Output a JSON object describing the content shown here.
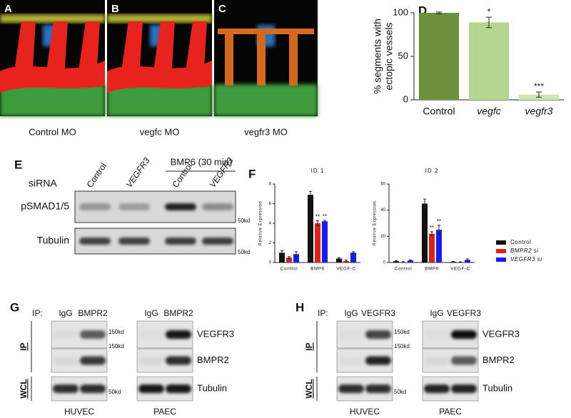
{
  "images": [
    {
      "letter": "A",
      "caption": "Control MO"
    },
    {
      "letter": "B",
      "caption": "vegfc MO"
    },
    {
      "letter": "C",
      "caption": "vegfr3 MO"
    }
  ],
  "blot_e": {
    "letter": "E",
    "row_label": "siRNA",
    "treatment": "BMP6 (30 min)",
    "lanes": [
      "Control",
      "VEGFR3",
      "Control",
      "VEGFR3"
    ],
    "rows": [
      {
        "label": "pSMAD1/5",
        "marker": "50kd"
      },
      {
        "label": "Tubulin",
        "marker": "50kd"
      }
    ]
  },
  "coip": [
    {
      "letter": "G",
      "ip_prefix": "IP:",
      "lanes_left": [
        "IgG",
        "BMPR2"
      ],
      "lanes_right": [
        "IgG",
        "BMPR2"
      ],
      "group_labels": [
        "IP",
        "WCL"
      ],
      "rows": [
        {
          "label": "VEGFR3",
          "marker": "150kd"
        },
        {
          "label": "BMPR2",
          "marker": "150kd"
        },
        {
          "label": "Tubulin",
          "marker": "50kd"
        }
      ],
      "cells": [
        "HUVEC",
        "PAEC"
      ]
    },
    {
      "letter": "H",
      "ip_prefix": "IP:",
      "lanes_left": [
        "IgG",
        "VEGFR3"
      ],
      "lanes_right": [
        "IgG",
        "VEGFR3"
      ],
      "group_labels": [
        "IP",
        "WCL"
      ],
      "rows": [
        {
          "label": "VEGFR3",
          "marker": "150kd"
        },
        {
          "label": "BMPR2",
          "marker": "150kd"
        },
        {
          "label": "Tubulin",
          "marker": "50kd"
        }
      ],
      "cells": [
        "HUVEC",
        "PAEC"
      ]
    }
  ],
  "chart_data": [
    {
      "type": "bar",
      "letter": "D",
      "categories": [
        "Control",
        "vegfc",
        "vegfr3"
      ],
      "values": [
        100,
        89,
        6
      ],
      "errors": [
        1,
        6,
        3
      ],
      "colors": [
        "#6e8f3c",
        "#b5d68e",
        "#cfe6b2"
      ],
      "ylabel": [
        "% segments with",
        "ectopic vessels"
      ],
      "ylim": [
        0,
        100
      ],
      "yticks": [
        0,
        50,
        100
      ],
      "annotations": [
        {
          "category": "vegfc",
          "text": "*"
        },
        {
          "category": "vegfr3",
          "text": "***"
        }
      ]
    },
    {
      "type": "grouped_bar",
      "letter": "F",
      "categories": [
        "Control",
        "BMP6",
        "VEGF-C"
      ],
      "ylabel": "Relative Expression",
      "series": [
        {
          "name": "Control",
          "color": "#111111"
        },
        {
          "name": "BMPR2 si",
          "color": "#e0201b"
        },
        {
          "name": "VEGFR3 si",
          "color": "#1a1aff"
        }
      ],
      "subplots": [
        {
          "title": "ID 1",
          "ylim": [
            0,
            8
          ],
          "yticks": [
            0,
            2,
            4,
            6,
            8
          ],
          "values": [
            [
              1.0,
              6.9,
              0.4
            ],
            [
              0.5,
              4.0,
              0.15
            ],
            [
              0.85,
              4.2,
              1.0
            ]
          ],
          "errors": [
            [
              0.2,
              0.35,
              0.1
            ],
            [
              0.1,
              0.25,
              0.1
            ],
            [
              0.25,
              0.1,
              0.1
            ]
          ],
          "annotations": [
            {
              "category": "BMP6",
              "series": "BMPR2 si",
              "text": "**"
            },
            {
              "category": "BMP6",
              "series": "VEGFR3 si",
              "text": "**"
            }
          ]
        },
        {
          "title": "ID 2",
          "ylim": [
            0,
            60
          ],
          "yticks": [
            0,
            20,
            40,
            60
          ],
          "values": [
            [
              1.0,
              45,
              0.5
            ],
            [
              0.3,
              22,
              0.3
            ],
            [
              1.5,
              25,
              2.0
            ]
          ],
          "errors": [
            [
              0.5,
              3.5,
              0.3
            ],
            [
              0.3,
              1.5,
              0.2
            ],
            [
              0.5,
              3.5,
              0.8
            ]
          ],
          "annotations": [
            {
              "category": "BMP6",
              "series": "BMPR2 si",
              "text": "**"
            },
            {
              "category": "BMP6",
              "series": "VEGFR3 si",
              "text": "**"
            }
          ]
        }
      ]
    }
  ]
}
